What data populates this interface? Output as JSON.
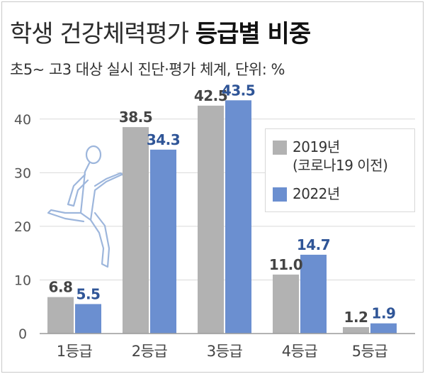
{
  "title": {
    "light": "학생 건강체력평가",
    "bold": "등급별 비중"
  },
  "subtitle": "초5~ 고3 대상 실시 진단·평가 체계, 단위: %",
  "legend": [
    {
      "label_line1": "2019년",
      "label_line2": "(코로나19 이전)"
    },
    {
      "label_line1": "2022년",
      "label_line2": ""
    }
  ],
  "chart_data": {
    "type": "bar",
    "categories": [
      "1등급",
      "2등급",
      "3등급",
      "4등급",
      "5등급"
    ],
    "series": [
      {
        "name": "2019년 (코로나19 이전)",
        "values": [
          6.8,
          38.5,
          42.5,
          11.0,
          1.2
        ],
        "labels": [
          "6.8",
          "38.5",
          "42.5",
          "11.0",
          "1.2"
        ],
        "color": "#b2b2b2",
        "label_color": "#444444"
      },
      {
        "name": "2022년",
        "values": [
          5.5,
          34.3,
          43.5,
          14.7,
          1.9
        ],
        "labels": [
          "5.5",
          "34.3",
          "43.5",
          "14.7",
          "1.9"
        ],
        "color": "#6b8fd0",
        "label_color": "#2f5597"
      }
    ],
    "ylim": [
      0,
      45
    ],
    "yticks": [
      0,
      10,
      20,
      30,
      40
    ],
    "grid": true
  }
}
